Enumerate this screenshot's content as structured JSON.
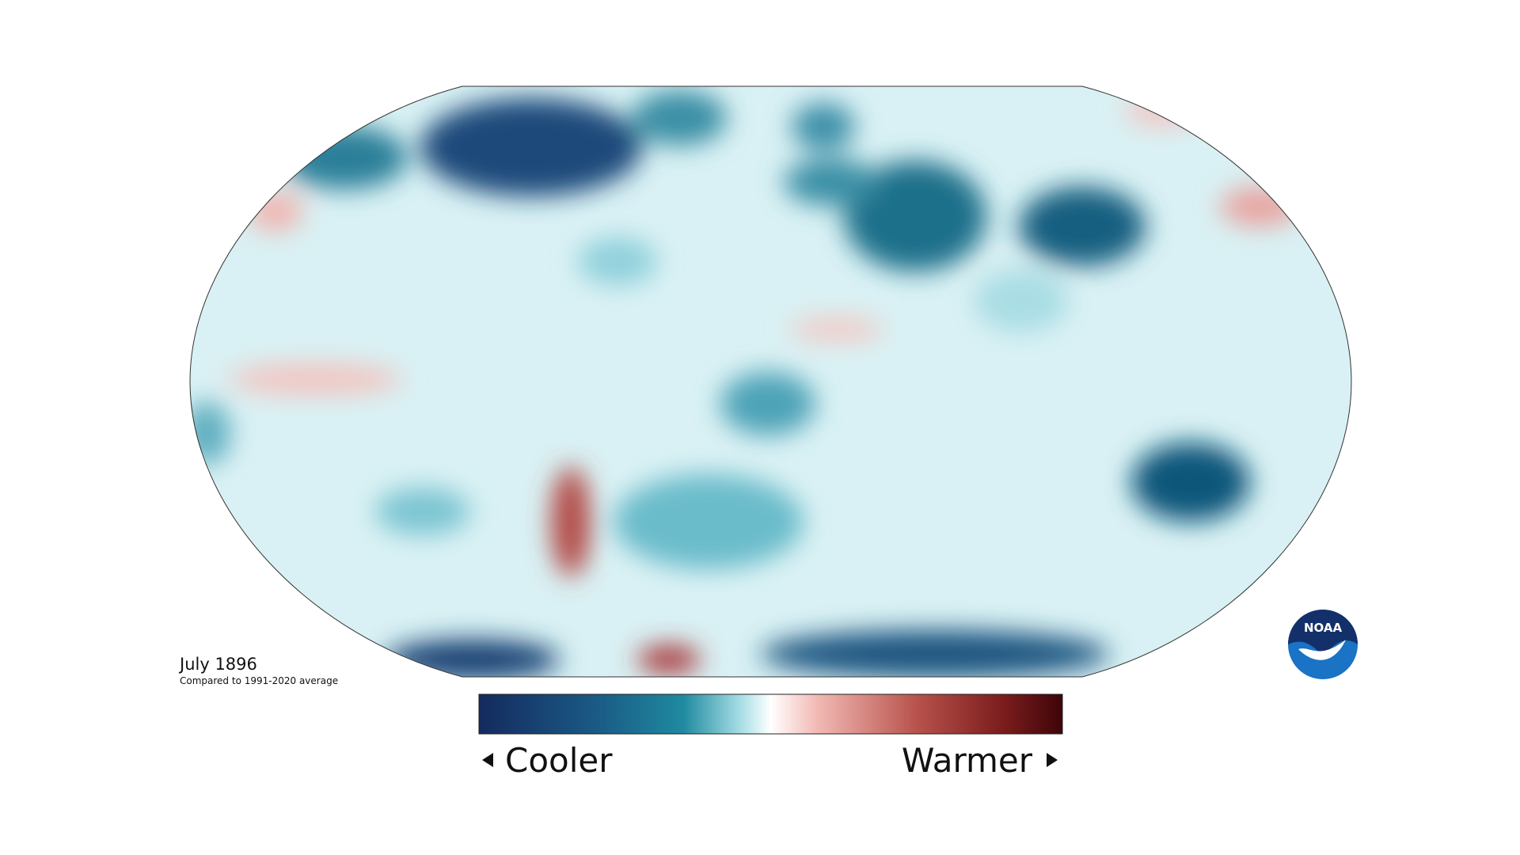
{
  "header": {
    "title": "July 1896",
    "subtitle": "Compared to 1991-2020 average"
  },
  "legend": {
    "low_label": "Cooler",
    "high_label": "Warmer"
  },
  "logo": {
    "text": "NOAA"
  }
}
